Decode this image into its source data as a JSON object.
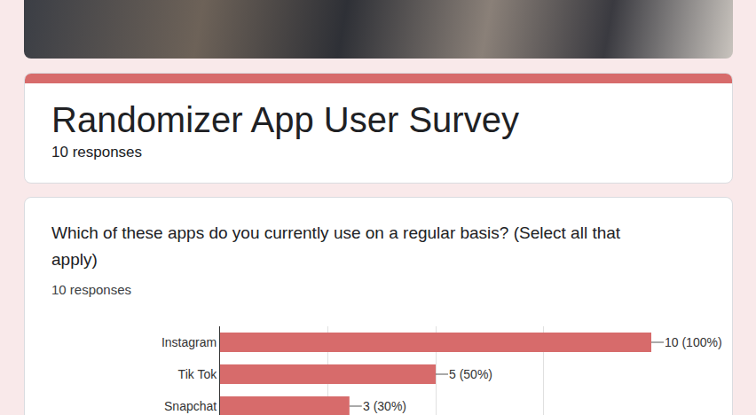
{
  "header": {
    "title": "Randomizer App User Survey",
    "responses": "10 responses"
  },
  "question": {
    "text": "Which of these apps do you currently use on a regular basis? (Select all that apply)",
    "responses": "10 responses"
  },
  "chart_data": {
    "type": "bar",
    "orientation": "horizontal",
    "categories": [
      "Instagram",
      "Tik Tok",
      "Snapchat"
    ],
    "values": [
      10,
      5,
      3
    ],
    "value_labels": [
      "10 (100%)",
      "5 (50%)",
      "3 (30%)"
    ],
    "color": "#d76b6b",
    "xlim": [
      0,
      10
    ],
    "xticks": [
      0,
      2.5,
      5,
      7.5,
      10
    ],
    "grid": true,
    "data_labels": true,
    "tick_labels": "y"
  }
}
